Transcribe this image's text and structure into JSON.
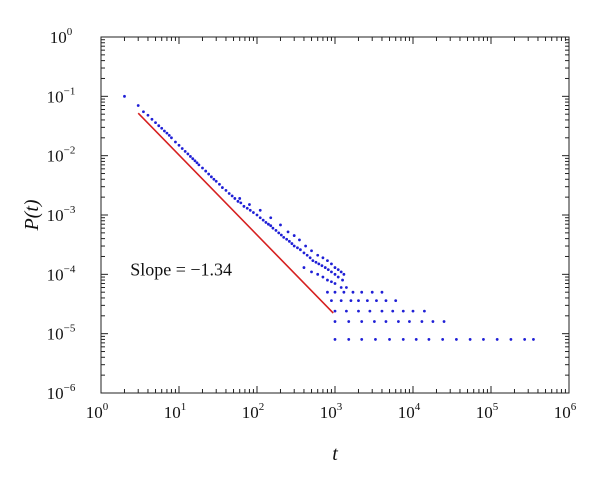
{
  "chart_data": {
    "type": "scatter",
    "title": "",
    "xlabel": "t",
    "ylabel": "P(t)",
    "xscale": "log",
    "yscale": "log",
    "xlim": [
      1,
      1000000
    ],
    "ylim": [
      1e-06,
      1
    ],
    "grid": false,
    "xticks": [
      {
        "base": "10",
        "exp": "0",
        "value": 1
      },
      {
        "base": "10",
        "exp": "1",
        "value": 10
      },
      {
        "base": "10",
        "exp": "2",
        "value": 100
      },
      {
        "base": "10",
        "exp": "3",
        "value": 1000
      },
      {
        "base": "10",
        "exp": "4",
        "value": 10000
      },
      {
        "base": "10",
        "exp": "5",
        "value": 100000
      },
      {
        "base": "10",
        "exp": "6",
        "value": 1000000
      }
    ],
    "yticks": [
      {
        "base": "10",
        "exp": "0",
        "value": 1
      },
      {
        "base": "10",
        "exp": "−1",
        "value": 0.1
      },
      {
        "base": "10",
        "exp": "−2",
        "value": 0.01
      },
      {
        "base": "10",
        "exp": "−3",
        "value": 0.001
      },
      {
        "base": "10",
        "exp": "−4",
        "value": 0.0001
      },
      {
        "base": "10",
        "exp": "−5",
        "value": 1e-05
      },
      {
        "base": "10",
        "exp": "−6",
        "value": 1e-06
      }
    ],
    "series": [
      {
        "color": "#1f1fd6",
        "points": [
          [
            2,
            0.1
          ],
          [
            3,
            0.07
          ],
          [
            3.5,
            0.055
          ],
          [
            4,
            0.048
          ],
          [
            4.5,
            0.041
          ],
          [
            5,
            0.036
          ],
          [
            5.5,
            0.032
          ],
          [
            6,
            0.029
          ],
          [
            6.5,
            0.026
          ],
          [
            7,
            0.024
          ],
          [
            7.5,
            0.022
          ],
          [
            8,
            0.02
          ],
          [
            9,
            0.017
          ],
          [
            10,
            0.015
          ],
          [
            11,
            0.0132
          ],
          [
            12,
            0.0118
          ],
          [
            13,
            0.0107
          ],
          [
            14,
            0.0097
          ],
          [
            15,
            0.0089
          ],
          [
            16,
            0.0082
          ],
          [
            17,
            0.0076
          ],
          [
            18,
            0.007
          ],
          [
            20,
            0.0062
          ],
          [
            22,
            0.0055
          ],
          [
            24,
            0.0049
          ],
          [
            26,
            0.0044
          ],
          [
            28,
            0.004
          ],
          [
            30,
            0.0037
          ],
          [
            33,
            0.0033
          ],
          [
            36,
            0.0029
          ],
          [
            40,
            0.0026
          ],
          [
            44,
            0.0023
          ],
          [
            48,
            0.0021
          ],
          [
            52,
            0.0019
          ],
          [
            57,
            0.0017
          ],
          [
            62,
            0.0016
          ],
          [
            68,
            0.0014
          ],
          [
            75,
            0.0013
          ],
          [
            82,
            0.0012
          ],
          [
            90,
            0.0011
          ],
          [
            100,
            0.001
          ],
          [
            110,
            0.0009
          ],
          [
            120,
            0.00082
          ],
          [
            130,
            0.00075
          ],
          [
            140,
            0.0007
          ],
          [
            150,
            0.00066
          ],
          [
            160,
            0.0006
          ],
          [
            175,
            0.00055
          ],
          [
            190,
            0.0005
          ],
          [
            205,
            0.00046
          ],
          [
            220,
            0.00042
          ],
          [
            240,
            0.00039
          ],
          [
            260,
            0.00036
          ],
          [
            280,
            0.00033
          ],
          [
            300,
            0.0003
          ],
          [
            330,
            0.00028
          ],
          [
            360,
            0.00026
          ],
          [
            400,
            0.00023
          ],
          [
            440,
            0.00021
          ],
          [
            480,
            0.00019
          ],
          [
            520,
            0.00017
          ],
          [
            570,
            0.00016
          ],
          [
            620,
            0.00015
          ],
          [
            680,
            0.00014
          ],
          [
            750,
            0.00013
          ],
          [
            820,
            0.00012
          ],
          [
            900,
            0.00011
          ],
          [
            1000,
            0.0001
          ],
          [
            1100,
            9e-05
          ],
          [
            1250,
            8e-05
          ],
          [
            60,
            0.0019
          ],
          [
            80,
            0.0015
          ],
          [
            110,
            0.0012
          ],
          [
            150,
            0.0009
          ],
          [
            200,
            0.00068
          ],
          [
            250,
            0.00052
          ],
          [
            300,
            0.00045
          ],
          [
            350,
            0.00038
          ],
          [
            420,
            0.0003
          ],
          [
            500,
            0.00025
          ],
          [
            600,
            0.00021
          ],
          [
            700,
            0.00019
          ],
          [
            800,
            0.00017
          ],
          [
            900,
            0.00015
          ],
          [
            1000,
            0.00013
          ],
          [
            1100,
            0.00012
          ],
          [
            1200,
            0.00011
          ],
          [
            1300,
            0.0001
          ],
          [
            400,
            0.00013
          ],
          [
            500,
            0.00011
          ],
          [
            600,
            0.0001
          ],
          [
            700,
            9e-05
          ],
          [
            800,
            8e-05
          ],
          [
            900,
            7.5e-05
          ],
          [
            1000,
            7e-05
          ],
          [
            1200,
            6e-05
          ],
          [
            1400,
            6e-05
          ],
          [
            800,
            5e-05
          ],
          [
            1000,
            5e-05
          ],
          [
            1300,
            5e-05
          ],
          [
            1700,
            5e-05
          ],
          [
            2200,
            5e-05
          ],
          [
            3000,
            5e-05
          ],
          [
            4000,
            5e-05
          ],
          [
            900,
            3.6e-05
          ],
          [
            1200,
            3.6e-05
          ],
          [
            1600,
            3.6e-05
          ],
          [
            2000,
            3.6e-05
          ],
          [
            2600,
            3.6e-05
          ],
          [
            3400,
            3.6e-05
          ],
          [
            4500,
            3.6e-05
          ],
          [
            6000,
            3.6e-05
          ],
          [
            1000,
            2.4e-05
          ],
          [
            1400,
            2.4e-05
          ],
          [
            2000,
            2.4e-05
          ],
          [
            2800,
            2.4e-05
          ],
          [
            4000,
            2.4e-05
          ],
          [
            5500,
            2.4e-05
          ],
          [
            7500,
            2.4e-05
          ],
          [
            10000,
            2.4e-05
          ],
          [
            14000,
            2.4e-05
          ],
          [
            1000,
            1.6e-05
          ],
          [
            1500,
            1.6e-05
          ],
          [
            2200,
            1.6e-05
          ],
          [
            3200,
            1.6e-05
          ],
          [
            4500,
            1.6e-05
          ],
          [
            6500,
            1.6e-05
          ],
          [
            9000,
            1.6e-05
          ],
          [
            13000,
            1.6e-05
          ],
          [
            18000,
            1.6e-05
          ],
          [
            25000,
            1.6e-05
          ],
          [
            1000,
            8e-06
          ],
          [
            1500,
            8e-06
          ],
          [
            2200,
            8e-06
          ],
          [
            3300,
            8e-06
          ],
          [
            5000,
            8e-06
          ],
          [
            7500,
            8e-06
          ],
          [
            11000,
            8e-06
          ],
          [
            16000,
            8e-06
          ],
          [
            24000,
            8e-06
          ],
          [
            36000,
            8e-06
          ],
          [
            54000,
            8e-06
          ],
          [
            80000,
            8e-06
          ],
          [
            120000,
            8e-06
          ],
          [
            180000,
            8e-06
          ],
          [
            270000,
            8e-06
          ],
          [
            350000,
            8e-06
          ]
        ]
      }
    ],
    "fit_line": {
      "color": "#d62020",
      "slope": -1.34,
      "from": [
        3,
        0.052
      ],
      "to": [
        950,
        2.22e-05
      ]
    },
    "annotation": {
      "text": "Slope = −1.34",
      "anchor": [
        3,
        0.00012
      ]
    }
  }
}
